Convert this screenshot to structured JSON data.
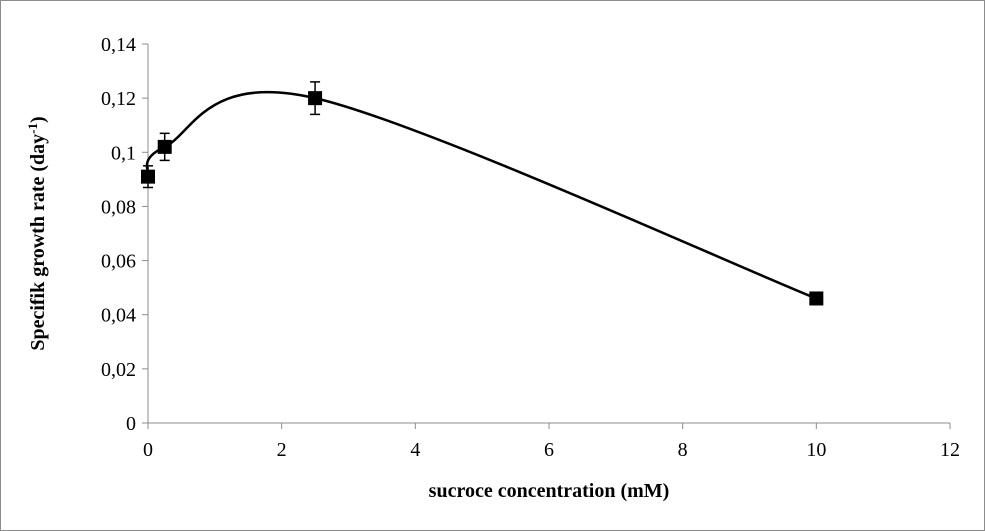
{
  "chart_data": {
    "type": "scatter",
    "xlabel": "sucroce concentration (mM)",
    "ylabel_main": "Specifik growth rate (day",
    "ylabel_sup": "-1",
    "ylabel_end": ")",
    "xlim": [
      0,
      12
    ],
    "ylim": [
      0,
      0.14
    ],
    "x_ticks": [
      0,
      2,
      4,
      6,
      8,
      10,
      12
    ],
    "x_tick_labels": [
      "0",
      "2",
      "4",
      "6",
      "8",
      "10",
      "12"
    ],
    "y_ticks": [
      0,
      0.02,
      0.04,
      0.06,
      0.08,
      0.1,
      0.12,
      0.14
    ],
    "y_tick_labels": [
      "0",
      "0,02",
      "0,04",
      "0,06",
      "0,08",
      "0,1",
      "0,12",
      "0,14"
    ],
    "grid": false,
    "smooth_line": true,
    "series": [
      {
        "x": [
          0,
          0.25,
          2.5,
          10
        ],
        "y": [
          0.091,
          0.102,
          0.12,
          0.046
        ],
        "error": [
          0.004,
          0.005,
          0.006,
          0.0
        ]
      }
    ],
    "colors": {
      "line": "#000000",
      "marker": "#000000",
      "axis": "#8c8c8c"
    }
  }
}
